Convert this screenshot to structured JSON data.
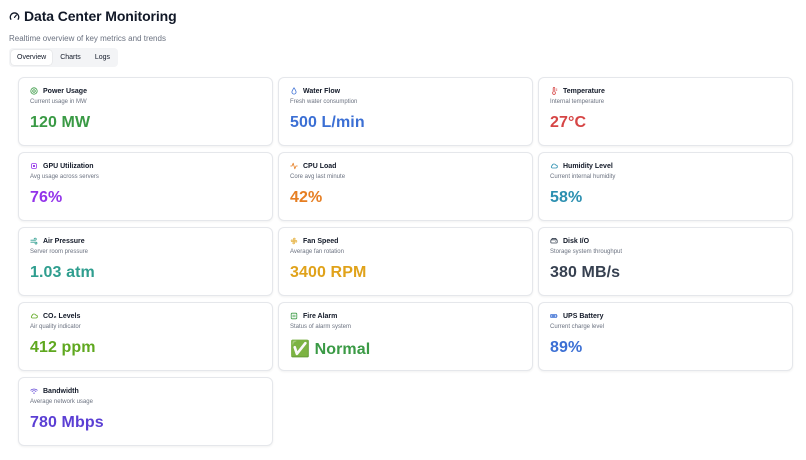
{
  "header": {
    "title": "Data Center Monitoring",
    "subtitle": "Realtime overview of key metrics and trends",
    "icon": "gauge-icon"
  },
  "tabs": [
    {
      "label": "Overview",
      "active": true
    },
    {
      "label": "Charts",
      "active": false
    },
    {
      "label": "Logs",
      "active": false
    }
  ],
  "cards": [
    {
      "title": "Power Usage",
      "desc": "Current usage in MW",
      "value": "120 MW",
      "color": "#3a9a45",
      "icon": "power-icon",
      "icon_color": "#3a9a45"
    },
    {
      "title": "Water Flow",
      "desc": "Fresh water consumption",
      "value": "500 L/min",
      "color": "#3b6fd4",
      "icon": "droplet-icon",
      "icon_color": "#3b6fd4"
    },
    {
      "title": "Temperature",
      "desc": "Internal temperature",
      "value": "27°C",
      "color": "#d64545",
      "icon": "thermometer-icon",
      "icon_color": "#d64545"
    },
    {
      "title": "GPU Utilization",
      "desc": "Avg usage across servers",
      "value": "76%",
      "color": "#9333ea",
      "icon": "cpu-chip-icon",
      "icon_color": "#9333ea"
    },
    {
      "title": "CPU Load",
      "desc": "Core avg last minute",
      "value": "42%",
      "color": "#e67e22",
      "icon": "activity-icon",
      "icon_color": "#e67e22"
    },
    {
      "title": "Humidity Level",
      "desc": "Current internal humidity",
      "value": "58%",
      "color": "#2b8fb0",
      "icon": "cloud-icon",
      "icon_color": "#2b8fb0"
    },
    {
      "title": "Air Pressure",
      "desc": "Server room pressure",
      "value": "1.03 atm",
      "color": "#2f9e8f",
      "icon": "wind-icon",
      "icon_color": "#2f9e8f"
    },
    {
      "title": "Fan Speed",
      "desc": "Average fan rotation",
      "value": "3400 RPM",
      "color": "#e0a21a",
      "icon": "fan-icon",
      "icon_color": "#e0a21a"
    },
    {
      "title": "Disk I/O",
      "desc": "Storage system throughput",
      "value": "380 MB/s",
      "color": "#374151",
      "icon": "hard-drive-icon",
      "icon_color": "#374151"
    },
    {
      "title": "CO₂ Levels",
      "desc": "Air quality indicator",
      "value": "412 ppm",
      "color": "#5fa81f",
      "icon": "leaf-cloud-icon",
      "icon_color": "#5fa81f"
    },
    {
      "title": "Fire Alarm",
      "desc": "Status of alarm system",
      "value": "✅ Normal",
      "color": "#3a9a45",
      "icon": "alarm-icon",
      "icon_color": "#3a9a45"
    },
    {
      "title": "UPS Battery",
      "desc": "Current charge level",
      "value": "89%",
      "color": "#3b6fd4",
      "icon": "battery-icon",
      "icon_color": "#3b6fd4"
    },
    {
      "title": "Bandwidth",
      "desc": "Average network usage",
      "value": "780 Mbps",
      "color": "#5b3fd4",
      "icon": "wifi-icon",
      "icon_color": "#5b3fd4"
    }
  ]
}
